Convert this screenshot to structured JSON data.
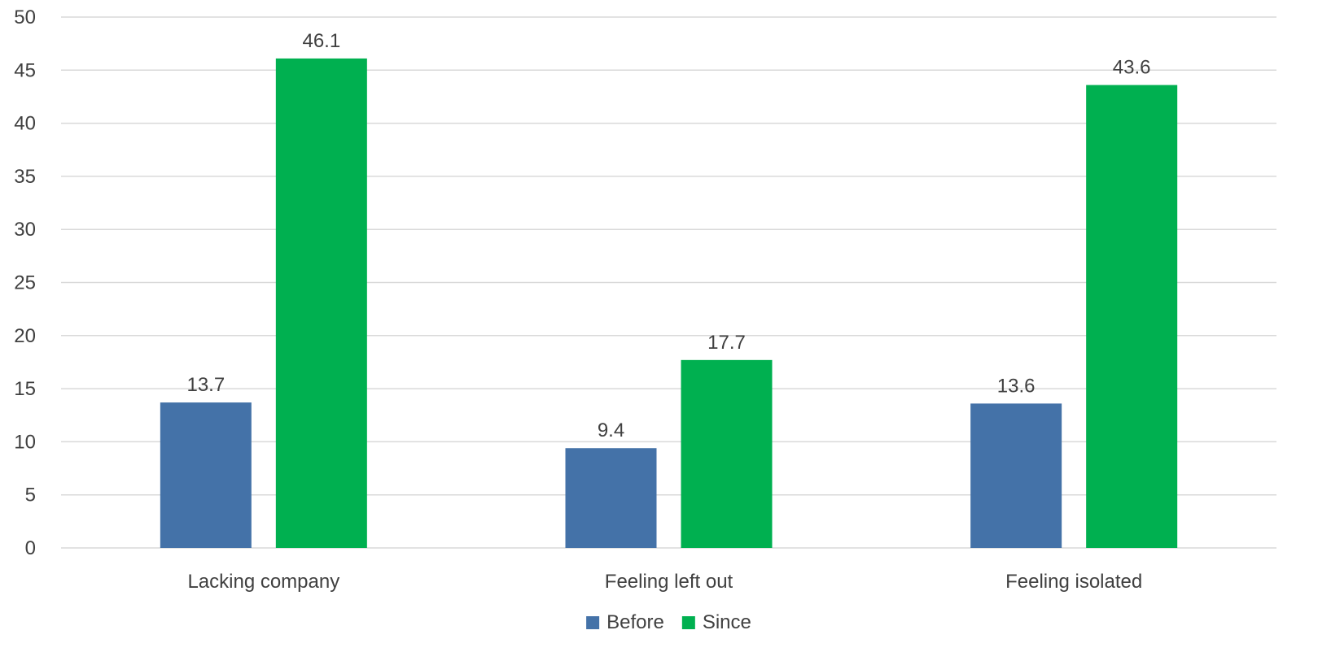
{
  "chart_data": {
    "type": "bar",
    "categories": [
      "Lacking company",
      "Feeling left out",
      "Feeling isolated"
    ],
    "series": [
      {
        "name": "Before",
        "color": "#4472a8",
        "values": [
          13.7,
          9.4,
          13.6
        ]
      },
      {
        "name": "Since",
        "color": "#00b050",
        "values": [
          46.1,
          17.7,
          43.6
        ]
      }
    ],
    "ylim": [
      0,
      50
    ],
    "yticks": [
      0,
      5,
      10,
      15,
      20,
      25,
      30,
      35,
      40,
      45,
      50
    ],
    "grid": true,
    "legend_position": "bottom",
    "data_labels": true,
    "title": "",
    "xlabel": "",
    "ylabel": ""
  }
}
